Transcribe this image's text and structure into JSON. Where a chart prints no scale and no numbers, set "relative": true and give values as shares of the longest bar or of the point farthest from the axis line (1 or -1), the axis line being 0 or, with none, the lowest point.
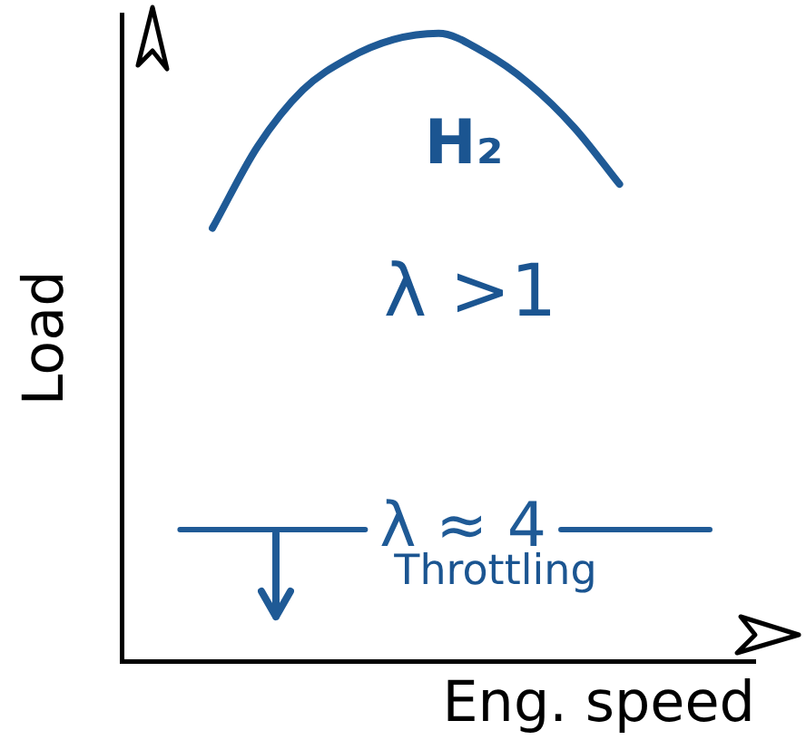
{
  "chart_data": {
    "type": "line",
    "relative": true,
    "xlabel": "Eng. speed",
    "ylabel": "Load",
    "categories": [
      null,
      null,
      null,
      null,
      null,
      null,
      null,
      null,
      null,
      null,
      null,
      null,
      null,
      null,
      null
    ],
    "series": [
      {
        "color": "#1f5a96",
        "values": [
          null,
          null,
          0.69,
          0.82,
          0.91,
          0.96,
          0.99,
          1.0,
          0.97,
          0.92,
          0.85,
          0.76,
          null,
          null,
          null
        ]
      }
    ],
    "ref_lines": [
      {
        "axis": "y",
        "value": 0.21,
        "label": "λ ≈ 4",
        "color": "#1f5a96"
      }
    ],
    "annotations": [
      "H₂",
      "λ >1",
      "Throttling"
    ],
    "grid": false,
    "legend": false,
    "marker": "none",
    "line_style": "solid"
  }
}
